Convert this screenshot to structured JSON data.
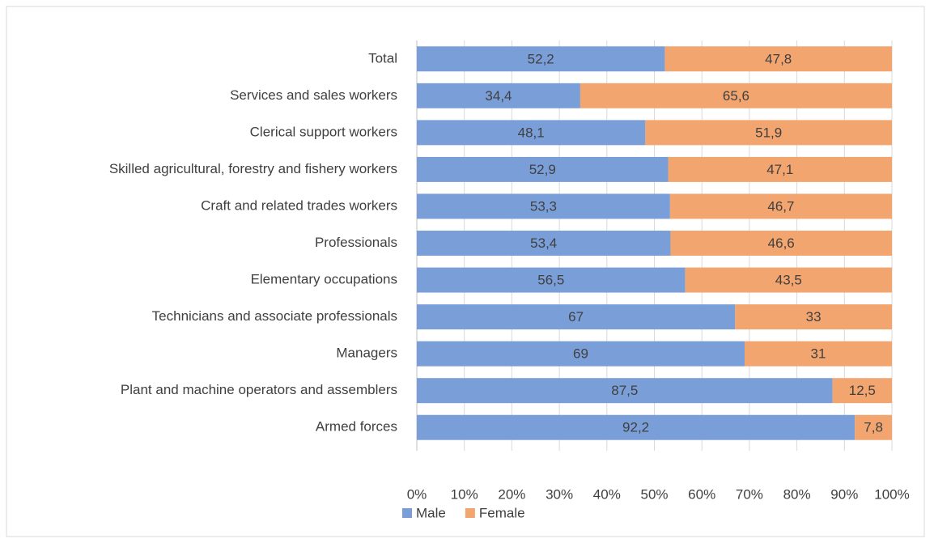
{
  "chart_data": {
    "type": "stacked_barh",
    "categories": [
      "Total",
      "Services and sales workers",
      "Clerical support workers",
      "Skilled agricultural, forestry and fishery workers",
      "Craft and related trades workers",
      "Professionals",
      "Elementary occupations",
      "Technicians and associate professionals",
      "Managers",
      "Plant and machine operators and assemblers",
      "Armed forces"
    ],
    "series": [
      {
        "name": "Male",
        "color": "#7a9fd8",
        "values": [
          52.2,
          34.4,
          48.1,
          52.9,
          53.3,
          53.4,
          56.5,
          67,
          69,
          87.5,
          92.2
        ],
        "value_labels": [
          "52,2",
          "34,4",
          "48,1",
          "52,9",
          "53,3",
          "53,4",
          "56,5",
          "67",
          "69",
          "87,5",
          "92,2"
        ]
      },
      {
        "name": "Female",
        "color": "#f2a56f",
        "values": [
          47.8,
          65.6,
          51.9,
          47.1,
          46.7,
          46.6,
          43.5,
          33,
          31,
          12.5,
          7.8
        ],
        "value_labels": [
          "47,8",
          "65,6",
          "51,9",
          "47,1",
          "46,7",
          "46,6",
          "43,5",
          "33",
          "31",
          "12,5",
          "7,8"
        ]
      }
    ],
    "xlim": [
      0,
      100
    ],
    "xticks": [
      {
        "value": 0,
        "label": "0%"
      },
      {
        "value": 10,
        "label": "10%"
      },
      {
        "value": 20,
        "label": "20%"
      },
      {
        "value": 30,
        "label": "30%"
      },
      {
        "value": 40,
        "label": "40%"
      },
      {
        "value": 50,
        "label": "50%"
      },
      {
        "value": 60,
        "label": "60%"
      },
      {
        "value": 70,
        "label": "70%"
      },
      {
        "value": 80,
        "label": "80%"
      },
      {
        "value": 90,
        "label": "90%"
      },
      {
        "value": 100,
        "label": "100%"
      }
    ],
    "grid": true,
    "legend": "bottom"
  }
}
